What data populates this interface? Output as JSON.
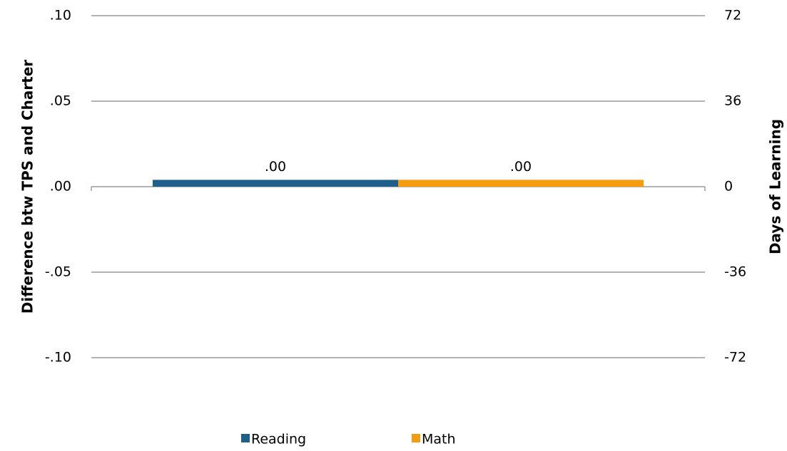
{
  "chart_data": {
    "type": "bar",
    "categories": [
      null
    ],
    "series": [
      {
        "name": "Reading",
        "color": "#1f5f8b",
        "values": [
          0.004
        ],
        "value_labels": [
          ".00"
        ]
      },
      {
        "name": "Math",
        "color": "#f59c0f",
        "values": [
          0.004
        ],
        "value_labels": [
          ".00"
        ]
      }
    ],
    "ylabel": "Difference btw TPS and Charter",
    "y2label": "Days of Learning",
    "ylim": [
      -0.1,
      0.1
    ],
    "yticks": [
      {
        "value": -0.1,
        "label": "-.10"
      },
      {
        "value": -0.05,
        "label": "-.05"
      },
      {
        "value": 0,
        "label": ".00"
      },
      {
        "value": 0.05,
        "label": ".05"
      },
      {
        "value": 0.1,
        "label": ".10"
      }
    ],
    "y2lim": [
      -72,
      72
    ],
    "y2ticks": [
      -72,
      -36,
      0,
      36,
      72
    ],
    "grid": true,
    "legend": "bottom"
  }
}
